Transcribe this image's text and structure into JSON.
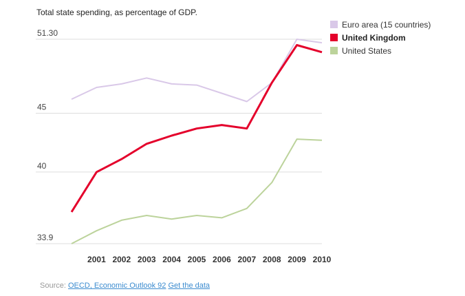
{
  "chart_data": {
    "type": "line",
    "title": "Total state spending, as percentage of GDP.",
    "xlabel": "",
    "ylabel": "",
    "x": [
      2000,
      2001,
      2002,
      2003,
      2004,
      2005,
      2006,
      2007,
      2008,
      2009,
      2010
    ],
    "x_tick_labels": [
      "2001",
      "2002",
      "2003",
      "2004",
      "2005",
      "2006",
      "2007",
      "2008",
      "2009",
      "2010"
    ],
    "y_ticks": [
      33.9,
      40,
      45,
      51.3
    ],
    "y_tick_labels": [
      "33.9",
      "40",
      "45",
      "51.30"
    ],
    "ylim": [
      33.9,
      51.3
    ],
    "grid": true,
    "legend_position": "top-right",
    "series": [
      {
        "name": "Euro area (15 countries)",
        "color": "#d9c8e8",
        "bold": false,
        "values": [
          46.2,
          47.2,
          47.5,
          48.0,
          47.5,
          47.4,
          46.7,
          46.0,
          47.6,
          51.3,
          51.0
        ]
      },
      {
        "name": "United Kingdom",
        "color": "#e4002b",
        "bold": true,
        "values": [
          36.6,
          40.0,
          41.1,
          42.4,
          43.1,
          43.7,
          44.0,
          43.7,
          47.6,
          50.8,
          50.2
        ]
      },
      {
        "name": "United States",
        "color": "#bcd39b",
        "bold": false,
        "values": [
          33.9,
          35.0,
          35.9,
          36.3,
          36.0,
          36.3,
          36.1,
          36.9,
          39.1,
          42.8,
          42.7
        ]
      }
    ]
  },
  "source": {
    "prefix": "Source: ",
    "link1": "OECD, Economic Outlook 92",
    "link2": "Get the data"
  }
}
